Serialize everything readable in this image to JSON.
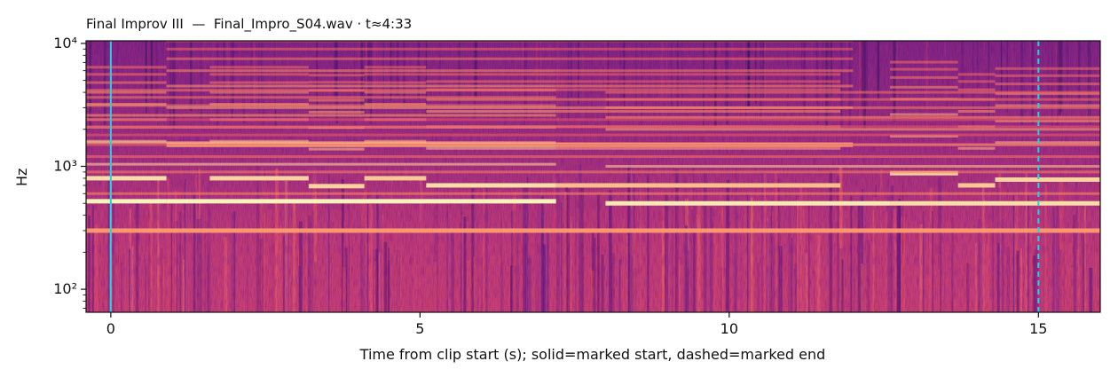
{
  "chart_data": {
    "type": "heatmap",
    "subtype": "spectrogram",
    "title": "Final Improv III  —  Final_Impro_S04.wav · t≈4:33",
    "xlabel": "Time from clip start (s); solid=marked start, dashed=marked end",
    "ylabel": "Hz",
    "xlim": [
      -0.4,
      16.0
    ],
    "ylim": [
      65,
      10500
    ],
    "y_scale": "log",
    "x_ticks": [
      0,
      5,
      10,
      15
    ],
    "x_tick_labels": [
      "0",
      "5",
      "10",
      "15"
    ],
    "y_ticks": [
      100,
      1000,
      10000
    ],
    "y_tick_labels": [
      "10²",
      "10³",
      "10⁴"
    ],
    "colormap": "magma",
    "markers": [
      {
        "name": "marked start",
        "x": 0,
        "style": "solid",
        "color": "#22d3e6"
      },
      {
        "name": "marked end",
        "x": 15,
        "style": "dashed",
        "color": "#22d3e6"
      }
    ],
    "harmonic_bands": [
      {
        "t_start": -0.4,
        "t_end": 0.9,
        "freq": 520,
        "intensity": 1.0
      },
      {
        "t_start": -0.4,
        "t_end": 0.9,
        "freq": 800,
        "intensity": 0.9
      },
      {
        "t_start": 0.9,
        "t_end": 7.2,
        "freq": 520,
        "intensity": 1.0
      },
      {
        "t_start": 1.6,
        "t_end": 3.2,
        "freq": 800,
        "intensity": 0.85
      },
      {
        "t_start": 3.2,
        "t_end": 4.1,
        "freq": 690,
        "intensity": 0.85
      },
      {
        "t_start": 4.1,
        "t_end": 5.1,
        "freq": 800,
        "intensity": 0.8
      },
      {
        "t_start": 5.1,
        "t_end": 7.2,
        "freq": 700,
        "intensity": 0.9
      },
      {
        "t_start": 7.2,
        "t_end": 11.8,
        "freq": 700,
        "intensity": 0.75
      },
      {
        "t_start": 8.0,
        "t_end": 12.6,
        "freq": 500,
        "intensity": 0.95
      },
      {
        "t_start": 12.6,
        "t_end": 13.7,
        "freq": 880,
        "intensity": 0.85
      },
      {
        "t_start": 13.7,
        "t_end": 14.3,
        "freq": 700,
        "intensity": 0.8
      },
      {
        "t_start": 14.3,
        "t_end": 16.0,
        "freq": 780,
        "intensity": 0.85
      },
      {
        "t_start": 12.6,
        "t_end": 16.0,
        "freq": 500,
        "intensity": 0.9
      },
      {
        "t_start": 0.9,
        "t_end": 7.2,
        "freq": 1500,
        "intensity": 0.7
      },
      {
        "t_start": 7.2,
        "t_end": 12.0,
        "freq": 1500,
        "intensity": 0.6
      },
      {
        "t_start": -0.4,
        "t_end": 16.0,
        "freq": 300,
        "intensity": 0.55
      }
    ]
  }
}
